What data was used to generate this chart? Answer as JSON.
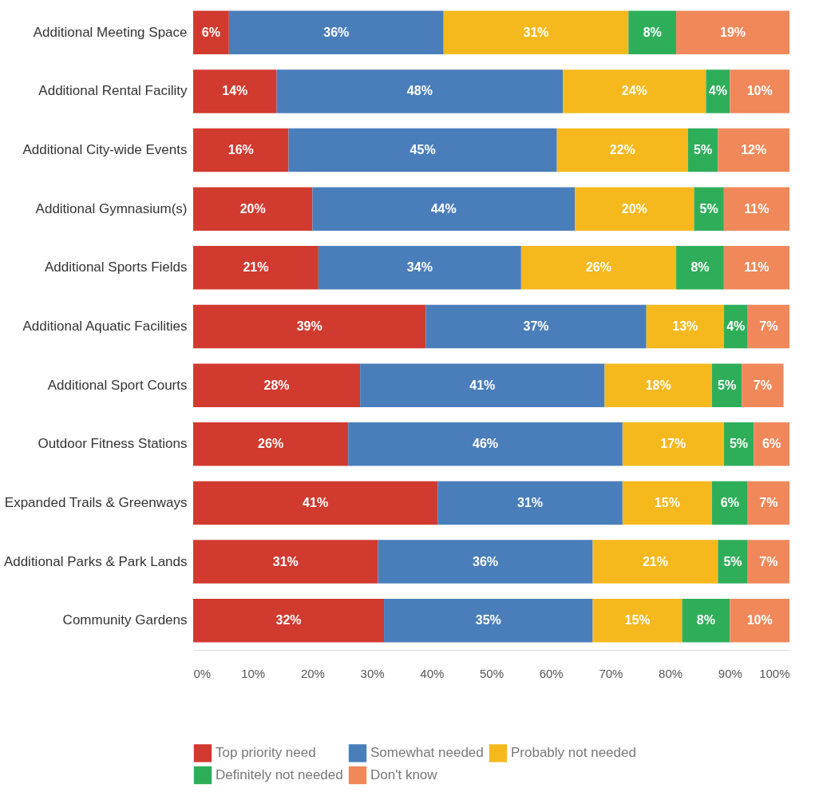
{
  "chart_data": {
    "type": "bar",
    "orientation": "horizontal",
    "stacked": true,
    "legend": "bottom",
    "grid": false,
    "categories": [
      "Additional Meeting Space",
      "Additional Rental Facility",
      "Additional City-wide Events",
      "Additional Gymnasium(s)",
      "Additional Sports Fields",
      "Additional Aquatic Facilities",
      "Additional Sport Courts",
      "Outdoor Fitness Stations",
      "Expanded Trails & Greenways",
      "Additional Parks & Park Lands",
      "Community Gardens"
    ],
    "xlim": [
      0,
      100
    ],
    "xticks": [
      {
        "value": 0,
        "label": "0%"
      },
      {
        "value": 10,
        "label": "10%"
      },
      {
        "value": 20,
        "label": "20%"
      },
      {
        "value": 30,
        "label": "30%"
      },
      {
        "value": 40,
        "label": "40%"
      },
      {
        "value": 50,
        "label": "50%"
      },
      {
        "value": 60,
        "label": "60%"
      },
      {
        "value": 70,
        "label": "70%"
      },
      {
        "value": 80,
        "label": "80%"
      },
      {
        "value": 90,
        "label": "90%"
      },
      {
        "value": 100,
        "label": "100%"
      }
    ],
    "series": [
      {
        "name": "Top priority need",
        "color": "#d13a2f",
        "values": [
          6,
          14,
          16,
          20,
          21,
          39,
          28,
          26,
          41,
          31,
          32
        ],
        "value_labels": [
          "6%",
          "14%",
          "16%",
          "20%",
          "21%",
          "39%",
          "28%",
          "26%",
          "41%",
          "31%",
          "32%"
        ]
      },
      {
        "name": "Somewhat needed",
        "color": "#4a7ebb",
        "values": [
          36,
          48,
          45,
          44,
          34,
          37,
          41,
          46,
          31,
          36,
          35
        ],
        "value_labels": [
          "36%",
          "48%",
          "45%",
          "44%",
          "34%",
          "37%",
          "41%",
          "46%",
          "31%",
          "36%",
          "35%"
        ]
      },
      {
        "name": "Probably not needed",
        "color": "#f5b91e",
        "values": [
          31,
          24,
          22,
          20,
          26,
          13,
          18,
          17,
          15,
          21,
          15
        ],
        "value_labels": [
          "31%",
          "24%",
          "22%",
          "20%",
          "26%",
          "13%",
          "18%",
          "17%",
          "15%",
          "21%",
          "15%"
        ]
      },
      {
        "name": "Definitely not needed",
        "color": "#2fae5a",
        "values": [
          8,
          4,
          5,
          5,
          8,
          4,
          5,
          5,
          6,
          5,
          8
        ],
        "value_labels": [
          "8%",
          "4%",
          "5%",
          "5%",
          "8%",
          "4%",
          "5%",
          "5%",
          "6%",
          "5%",
          "8%"
        ]
      },
      {
        "name": "Don't know",
        "color": "#f0885a",
        "values": [
          19,
          10,
          12,
          11,
          11,
          7,
          7,
          6,
          7,
          7,
          10
        ],
        "value_labels": [
          "19%",
          "10%",
          "12%",
          "11%",
          "11%",
          "7%",
          "7%",
          "6%",
          "7%",
          "7%",
          "10%"
        ]
      }
    ]
  }
}
